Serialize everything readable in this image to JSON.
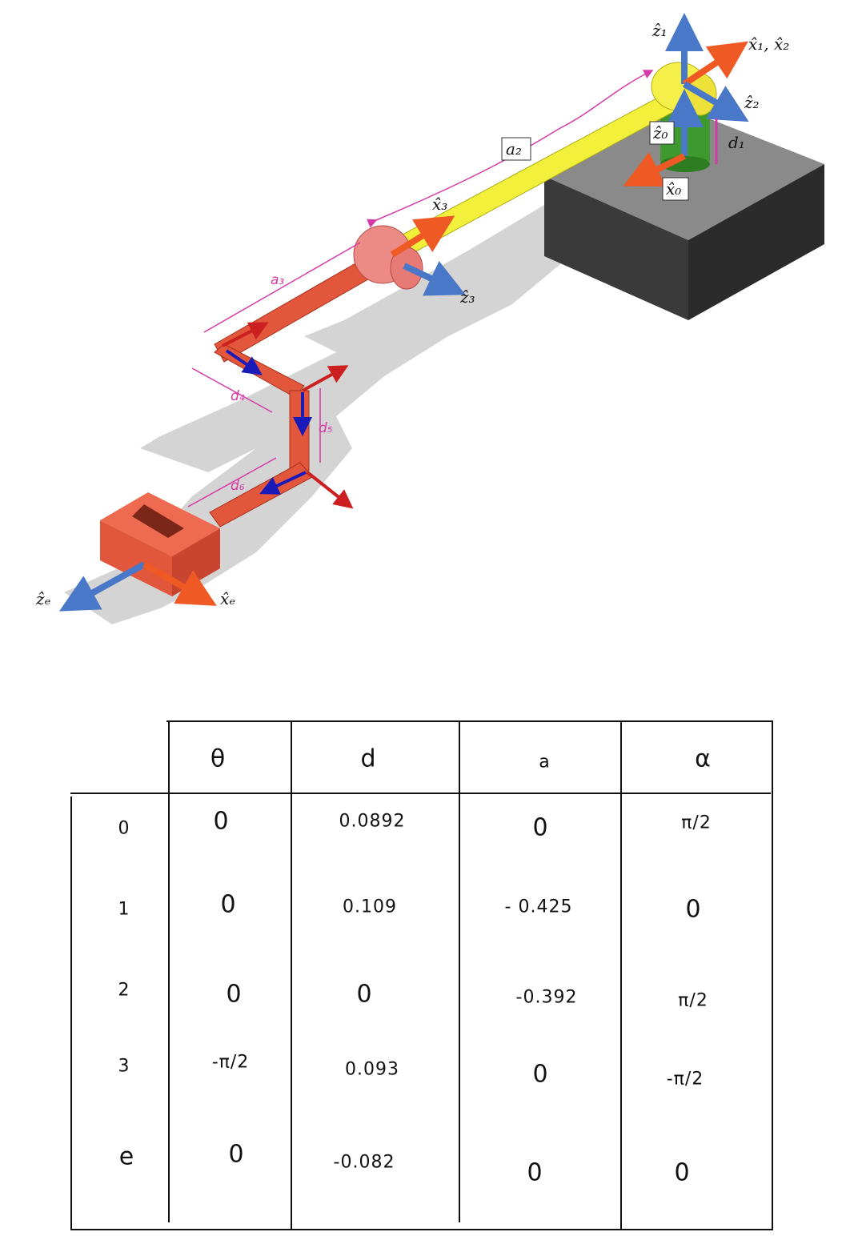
{
  "diagram": {
    "frame_labels": {
      "z1": "ẑ₁",
      "x1x2": "x̂₁, x̂₂",
      "z2": "ẑ₂",
      "z0": "ẑ₀",
      "x0": "x̂₀",
      "x3": "x̂₃",
      "z3": "ẑ₃",
      "ze": "ẑₑ",
      "xe": "x̂ₑ"
    },
    "dimension_labels": {
      "a2": "a₂",
      "d1": "d₁",
      "a3": "a₃",
      "d4": "d₄",
      "d5": "d₅",
      "d6": "d₆"
    },
    "colors": {
      "z_axis": "#4a78c8",
      "x_axis": "#ef5a24",
      "link_red": "#e2563b",
      "link_yellow": "#f3f03c",
      "annotation": "#d63aa8",
      "base": "#4a4a4a"
    }
  },
  "table": {
    "headers": [
      "θ",
      "d",
      "a",
      "α"
    ],
    "rows": [
      {
        "index": "0",
        "theta": "0",
        "d": "0.0892",
        "a": "0",
        "alpha": "π/2"
      },
      {
        "index": "1",
        "theta": "0",
        "d": "0.109",
        "a": "- 0.425",
        "alpha": "0"
      },
      {
        "index": "2",
        "theta": "0",
        "d": "0",
        "a": "-0.392",
        "alpha": "π/2"
      },
      {
        "index": "3",
        "theta": "-π/2",
        "d": "0.093",
        "a": "0",
        "alpha": "-π/2"
      },
      {
        "index": "e",
        "theta": "0",
        "d": "-0.082",
        "a": "0",
        "alpha": "0"
      }
    ]
  }
}
